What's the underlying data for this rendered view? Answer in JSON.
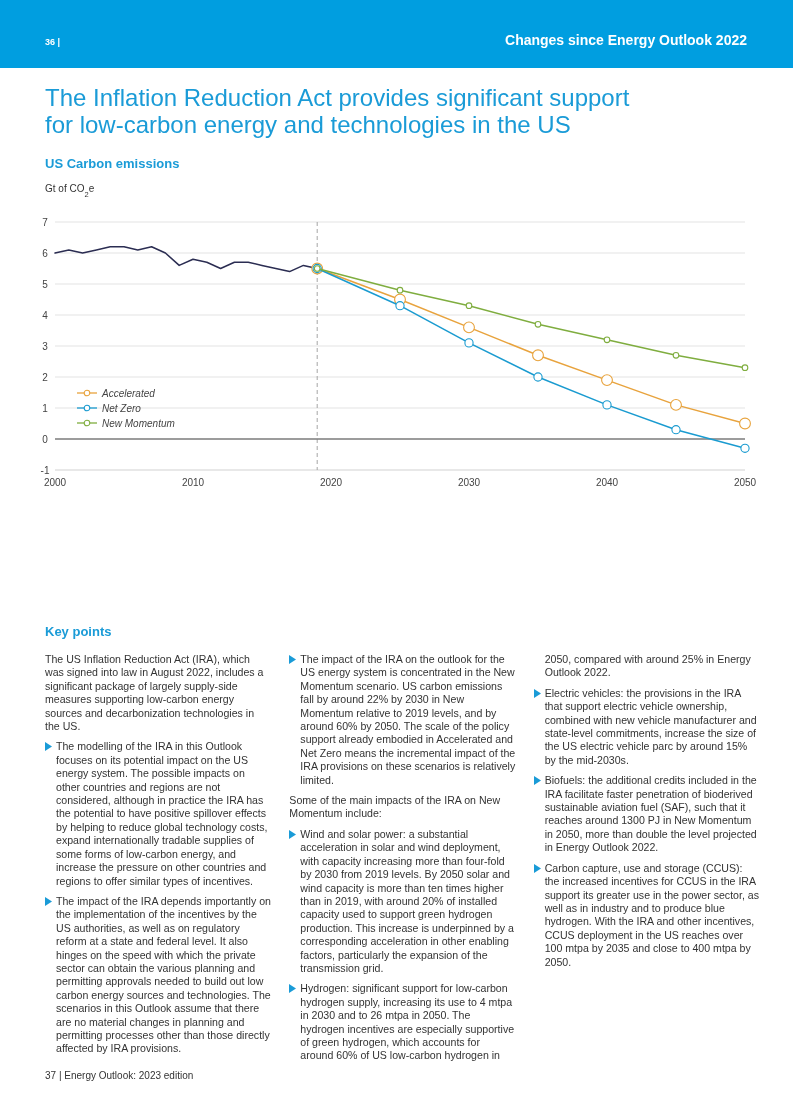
{
  "chart_data": {
    "type": "line",
    "title": "The Inflation Reduction Act provides significant support for low-carbon energy and technologies in the US",
    "subtitle": "US Carbon emissions",
    "ylabel": "Gt of CO$_{2}$e",
    "xlim": [
      2000,
      2050
    ],
    "xticks": [
      2000,
      2010,
      2020,
      2030,
      2040,
      2050
    ],
    "ylim": [
      -1,
      7
    ],
    "yticks": [
      -1,
      0,
      1,
      2,
      3,
      4,
      5,
      6,
      7
    ],
    "grid": "y",
    "legend": "bottom left",
    "marker": "circle",
    "line_style": "solid",
    "ref_lines": [
      {
        "axis": "x",
        "value": 2019,
        "color": "#a6a6a6",
        "line_style": "dashed"
      },
      {
        "axis": "y",
        "value": 0,
        "color": "#7f7f7f",
        "line_style": "solid"
      }
    ],
    "series": [
      {
        "color": "#2b2d52",
        "marker": "none",
        "x": [
          2000,
          2001,
          2002,
          2003,
          2004,
          2005,
          2006,
          2007,
          2008,
          2009,
          2010,
          2011,
          2012,
          2013,
          2014,
          2015,
          2016,
          2017,
          2018,
          2019
        ],
        "values": [
          6.0,
          6.1,
          6.0,
          6.1,
          6.2,
          6.2,
          6.1,
          6.2,
          6.0,
          5.6,
          5.8,
          5.7,
          5.5,
          5.7,
          5.7,
          5.6,
          5.5,
          5.4,
          5.6,
          5.5
        ]
      },
      {
        "name": "Accelerated",
        "color": "#e8a33d",
        "x": [
          2019,
          2025,
          2030,
          2035,
          2040,
          2045,
          2050
        ],
        "values": [
          5.5,
          4.5,
          3.6,
          2.7,
          1.9,
          1.1,
          0.5
        ]
      },
      {
        "name": "Net Zero",
        "color": "#1a9bd0",
        "x": [
          2019,
          2025,
          2030,
          2035,
          2040,
          2045,
          2050
        ],
        "values": [
          5.5,
          4.3,
          3.1,
          2.0,
          1.1,
          0.3,
          -0.3
        ]
      },
      {
        "name": "New Momentum",
        "color": "#7fad3f",
        "x": [
          2019,
          2025,
          2030,
          2035,
          2040,
          2045,
          2050
        ],
        "values": [
          5.5,
          4.8,
          4.3,
          3.7,
          3.2,
          2.7,
          2.3
        ]
      }
    ],
    "annotations": [
      "36 |",
      "Changes since Energy Outlook 2022",
      "Key points",
      "The US Inflation Reduction Act (IRA), which was signed into law in August 2022, includes a significant package of largely supply-side measures supporting low-carbon energy sources and decarbonization technologies in the US.",
      "The modelling of the IRA in this Outlook focuses on its potential impact on the US energy system. The possible impacts on other countries and regions are not considered, although in practice the IRA has the potential to have positive spillover effects by helping to reduce global technology costs, expand internationally tradable supplies of some forms of low-carbon energy, and increase the pressure on other countries and regions to offer similar types of incentives.",
      "The impact of the IRA depends importantly on the implementation of the incentives by the US authorities, as well as on regulatory reform at a state and federal level. It also hinges on the speed with which the private sector can obtain the various planning and permitting approvals needed to build out low carbon energy sources and technologies. The scenarios in this Outlook assume that there are no material changes in planning and permitting processes other than those directly affected by IRA provisions.",
      "The impact of the IRA on the outlook for the US energy system is concentrated in the New Momentum scenario. US carbon emissions fall by around 22% by 2030 in New Momentum relative to 2019 levels, and by around 60% by 2050. The scale of the policy support already embodied in Accelerated and Net Zero means the incremental impact of the IRA provisions on these scenarios is relatively limited.",
      "Some of the main impacts of the IRA on New Momentum include:",
      "Wind and solar power: a substantial acceleration in solar and wind deployment, with capacity increasing more than four-fold by 2030 from 2019 levels. By 2050 solar and wind capacity is more than ten times higher than in 2019, with around 20% of installed capacity used to support green hydrogen production. This increase is underpinned by a corresponding acceleration in other enabling factors, particularly the expansion of the transmission grid.",
      "Hydrogen: significant support for low-carbon hydrogen supply, increasing its use to 4 mtpa in 2030 and to 26 mtpa in 2050. The hydrogen incentives are especially supportive of green hydrogen, which accounts for around 60% of US low-carbon hydrogen in 2050, compared with around 25% in Energy Outlook 2022.",
      "Electric vehicles: the provisions in the IRA that support electric vehicle ownership, combined with new vehicle manufacturer and state-level commitments, increase the size of the US electric vehicle parc by around 15% by the mid-2030s.",
      "Biofuels: the additional credits included in the IRA facilitate faster penetration of bioderived sustainable aviation fuel (SAF), such that it reaches around 1300 PJ in New Momentum in 2050, more than double the level projected in Energy Outlook 2022.",
      "Carbon capture, use and storage (CCUS): the increased incentives for CCUS in the IRA support its greater use in the power sector, as well as in industry and to produce blue hydrogen. With the IRA and other incentives, CCUS deployment in the US reaches over 100 mtpa by 2035 and close to 400 mtpa by 2050.",
      "37 | Energy Outlook: 2023 edition"
    ]
  }
}
